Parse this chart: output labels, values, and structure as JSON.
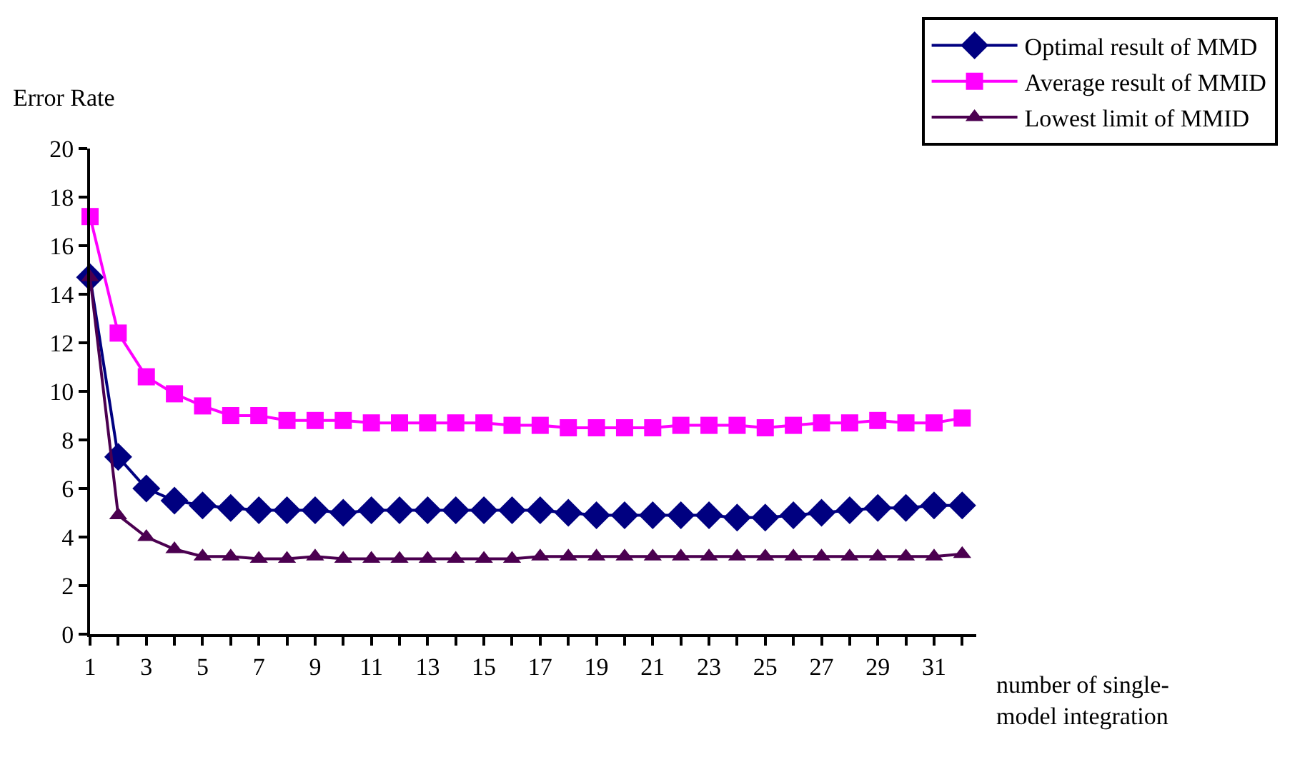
{
  "chart_data": {
    "type": "line",
    "xlabel": "number of single-\nmodel integration",
    "ylabel": "Error Rate",
    "x": [
      1,
      2,
      3,
      4,
      5,
      6,
      7,
      8,
      9,
      10,
      11,
      12,
      13,
      14,
      15,
      16,
      17,
      18,
      19,
      20,
      21,
      22,
      23,
      24,
      25,
      26,
      27,
      28,
      29,
      30,
      31,
      32
    ],
    "series": [
      {
        "name": "Optimal result of MMD",
        "color": "#000080",
        "marker": "diamond",
        "values": [
          14.7,
          7.3,
          6.0,
          5.5,
          5.3,
          5.2,
          5.1,
          5.1,
          5.1,
          5.0,
          5.1,
          5.1,
          5.1,
          5.1,
          5.1,
          5.1,
          5.1,
          5.0,
          4.9,
          4.9,
          4.9,
          4.9,
          4.9,
          4.8,
          4.8,
          4.9,
          5.0,
          5.1,
          5.2,
          5.2,
          5.3,
          5.3
        ]
      },
      {
        "name": "Average result of MMID",
        "color": "#ff00ff",
        "marker": "square",
        "values": [
          17.2,
          12.4,
          10.6,
          9.9,
          9.4,
          9.0,
          9.0,
          8.8,
          8.8,
          8.8,
          8.7,
          8.7,
          8.7,
          8.7,
          8.7,
          8.6,
          8.6,
          8.5,
          8.5,
          8.5,
          8.5,
          8.6,
          8.6,
          8.6,
          8.5,
          8.6,
          8.7,
          8.7,
          8.8,
          8.7,
          8.7,
          8.9
        ]
      },
      {
        "name": "Lowest limit of MMID",
        "color": "#4b0050",
        "marker": "triangle",
        "values": [
          14.7,
          4.9,
          4.0,
          3.5,
          3.2,
          3.2,
          3.1,
          3.1,
          3.2,
          3.1,
          3.1,
          3.1,
          3.1,
          3.1,
          3.1,
          3.1,
          3.2,
          3.2,
          3.2,
          3.2,
          3.2,
          3.2,
          3.2,
          3.2,
          3.2,
          3.2,
          3.2,
          3.2,
          3.2,
          3.2,
          3.2,
          3.3
        ]
      }
    ],
    "xlim": [
      1,
      32.5
    ],
    "xticks": [
      1,
      {
        "value": 2,
        "label": null
      },
      3,
      {
        "value": 4,
        "label": null
      },
      5,
      {
        "value": 6,
        "label": null
      },
      7,
      {
        "value": 8,
        "label": null
      },
      9,
      {
        "value": 10,
        "label": null
      },
      11,
      {
        "value": 12,
        "label": null
      },
      13,
      {
        "value": 14,
        "label": null
      },
      15,
      {
        "value": 16,
        "label": null
      },
      17,
      {
        "value": 18,
        "label": null
      },
      19,
      {
        "value": 20,
        "label": null
      },
      21,
      {
        "value": 22,
        "label": null
      },
      23,
      {
        "value": 24,
        "label": null
      },
      25,
      {
        "value": 26,
        "label": null
      },
      27,
      {
        "value": 28,
        "label": null
      },
      29,
      {
        "value": 30,
        "label": null
      },
      31,
      {
        "value": 32,
        "label": null
      }
    ],
    "ylim": [
      0,
      20
    ],
    "yticks": [
      0,
      2,
      4,
      6,
      8,
      10,
      12,
      14,
      16,
      18,
      20
    ],
    "legend": "top right",
    "line_style": "solid"
  }
}
